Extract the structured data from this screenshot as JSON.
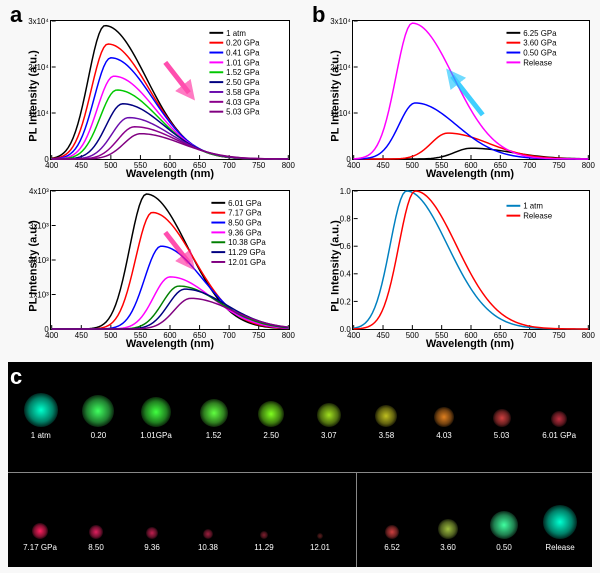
{
  "panels": {
    "a": "a",
    "b": "b",
    "c": "c"
  },
  "chart_a_top": {
    "type": "line",
    "ylabel": "PL Intensity (a.u.)",
    "xlabel": "Wavelength (nm)",
    "xlim": [
      400,
      800
    ],
    "ylim": [
      0,
      30000
    ],
    "xticks": [
      "400",
      "450",
      "500",
      "550",
      "600",
      "650",
      "700",
      "750",
      "800"
    ],
    "yticks": [
      "0",
      "1x10⁴",
      "2x10⁴",
      "3x10⁴"
    ],
    "arrow_color": "#ff1493",
    "legend": [
      {
        "label": "1 atm",
        "color": "#000000"
      },
      {
        "label": "0.20 GPa",
        "color": "#ff0000"
      },
      {
        "label": "0.41 GPa",
        "color": "#0000ff"
      },
      {
        "label": "1.01 GPa",
        "color": "#ff00ff"
      },
      {
        "label": "1.52 GPa",
        "color": "#00c800"
      },
      {
        "label": "2.50 GPa",
        "color": "#000080"
      },
      {
        "label": "3.58 GPa",
        "color": "#6a0dad"
      },
      {
        "label": "4.03 GPa",
        "color": "#8b008b"
      },
      {
        "label": "5.03 GPa",
        "color": "#800080"
      }
    ],
    "series": [
      {
        "color": "#000000",
        "peak_x": 490,
        "peak_y": 29000
      },
      {
        "color": "#ff0000",
        "peak_x": 495,
        "peak_y": 25000
      },
      {
        "color": "#0000ff",
        "peak_x": 500,
        "peak_y": 22000
      },
      {
        "color": "#ff00ff",
        "peak_x": 505,
        "peak_y": 18000
      },
      {
        "color": "#00c800",
        "peak_x": 510,
        "peak_y": 15000
      },
      {
        "color": "#000080",
        "peak_x": 520,
        "peak_y": 12000
      },
      {
        "color": "#6a0dad",
        "peak_x": 530,
        "peak_y": 9000
      },
      {
        "color": "#8b008b",
        "peak_x": 540,
        "peak_y": 7000
      },
      {
        "color": "#800080",
        "peak_x": 550,
        "peak_y": 5500
      }
    ]
  },
  "chart_a_bottom": {
    "type": "line",
    "ylabel": "PL Intensity (a.u.)",
    "xlabel": "Wavelength (nm)",
    "xlim": [
      400,
      800
    ],
    "ylim": [
      0,
      4500
    ],
    "xticks": [
      "400",
      "450",
      "500",
      "550",
      "600",
      "650",
      "700",
      "750",
      "800"
    ],
    "yticks": [
      "0",
      "1x10³",
      "2x10³",
      "3x10³",
      "4x10³"
    ],
    "arrow_color": "#ff1493",
    "legend": [
      {
        "label": "6.01 GPa",
        "color": "#000000"
      },
      {
        "label": "7.17 GPa",
        "color": "#ff0000"
      },
      {
        "label": "8.50 GPa",
        "color": "#0000ff"
      },
      {
        "label": "9.36 GPa",
        "color": "#ff00ff"
      },
      {
        "label": "10.38 GPa",
        "color": "#008000"
      },
      {
        "label": "11.29 GPa",
        "color": "#000080"
      },
      {
        "label": "12.01 GPa",
        "color": "#800080"
      }
    ],
    "series": [
      {
        "color": "#000000",
        "peak_x": 560,
        "peak_y": 4400
      },
      {
        "color": "#ff0000",
        "peak_x": 570,
        "peak_y": 3800
      },
      {
        "color": "#0000ff",
        "peak_x": 585,
        "peak_y": 2700
      },
      {
        "color": "#ff00ff",
        "peak_x": 600,
        "peak_y": 1700
      },
      {
        "color": "#008000",
        "peak_x": 615,
        "peak_y": 1400
      },
      {
        "color": "#000080",
        "peak_x": 625,
        "peak_y": 1300
      },
      {
        "color": "#800080",
        "peak_x": 635,
        "peak_y": 1000
      }
    ]
  },
  "chart_b_top": {
    "type": "line",
    "ylabel": "PL Intensity (a.u.)",
    "xlabel": "Wavelength (nm)",
    "xlim": [
      400,
      800
    ],
    "ylim": [
      0,
      32000
    ],
    "xticks": [
      "400",
      "450",
      "500",
      "550",
      "600",
      "650",
      "700",
      "750",
      "800"
    ],
    "yticks": [
      "0",
      "1x10⁴",
      "2x10⁴",
      "3x10⁴"
    ],
    "arrow_color": "#00bfff",
    "legend": [
      {
        "label": "6.25 GPa",
        "color": "#000000"
      },
      {
        "label": "3.60 GPa",
        "color": "#ff0000"
      },
      {
        "label": "0.50 GPa",
        "color": "#0000ff"
      },
      {
        "label": "Release",
        "color": "#ff00ff"
      }
    ],
    "series": [
      {
        "color": "#000000",
        "peak_x": 600,
        "peak_y": 2500
      },
      {
        "color": "#ff0000",
        "peak_x": 560,
        "peak_y": 6000
      },
      {
        "color": "#0000ff",
        "peak_x": 505,
        "peak_y": 13000
      },
      {
        "color": "#ff00ff",
        "peak_x": 500,
        "peak_y": 31500
      }
    ]
  },
  "chart_b_bottom": {
    "type": "line",
    "ylabel": "PL Intensity (a.u.)",
    "xlabel": "Wavelength (nm)",
    "xlim": [
      400,
      800
    ],
    "ylim": [
      0,
      1.0
    ],
    "xticks": [
      "400",
      "450",
      "500",
      "550",
      "600",
      "650",
      "700",
      "750",
      "800"
    ],
    "yticks": [
      "0.0",
      "0.2",
      "0.4",
      "0.6",
      "0.8",
      "1.0"
    ],
    "legend": [
      {
        "label": "1 atm",
        "color": "#0080c0"
      },
      {
        "label": "Release",
        "color": "#ff0000"
      }
    ],
    "series": [
      {
        "color": "#0080c0",
        "peak_x": 490,
        "peak_y": 1.0
      },
      {
        "color": "#ff0000",
        "peak_x": 505,
        "peak_y": 1.0
      }
    ]
  },
  "photo_panel": {
    "background": "#000000",
    "row1": [
      {
        "label": "1 atm",
        "color": "#00ffcc",
        "size": 34
      },
      {
        "label": "0.20",
        "color": "#40ff60",
        "size": 32
      },
      {
        "label": "1.01GPa",
        "color": "#40ff40",
        "size": 30
      },
      {
        "label": "1.52",
        "color": "#60ff40",
        "size": 28
      },
      {
        "label": "2.50",
        "color": "#80ff20",
        "size": 26
      },
      {
        "label": "3.07",
        "color": "#a0e020",
        "size": 24
      },
      {
        "label": "3.58",
        "color": "#c0c020",
        "size": 22
      },
      {
        "label": "4.03",
        "color": "#e08020",
        "size": 20
      },
      {
        "label": "5.03",
        "color": "#d04040",
        "size": 18
      },
      {
        "label": "6.01 GPa",
        "color": "#c03040",
        "size": 16
      }
    ],
    "row2_left": [
      {
        "label": "7.17 GPa",
        "color": "#ff2060",
        "size": 16
      },
      {
        "label": "8.50",
        "color": "#e02060",
        "size": 14
      },
      {
        "label": "9.36",
        "color": "#c02050",
        "size": 12
      },
      {
        "label": "10.38",
        "color": "#a02040",
        "size": 10
      },
      {
        "label": "11.29",
        "color": "#802030",
        "size": 8
      },
      {
        "label": "12.01",
        "color": "#602020",
        "size": 6
      }
    ],
    "row2_right": [
      {
        "label": "6.52",
        "color": "#d04040",
        "size": 14
      },
      {
        "label": "3.60",
        "color": "#a0c040",
        "size": 20
      },
      {
        "label": "0.50",
        "color": "#40ffa0",
        "size": 28
      },
      {
        "label": "Release",
        "color": "#00ffd0",
        "size": 34
      }
    ]
  }
}
